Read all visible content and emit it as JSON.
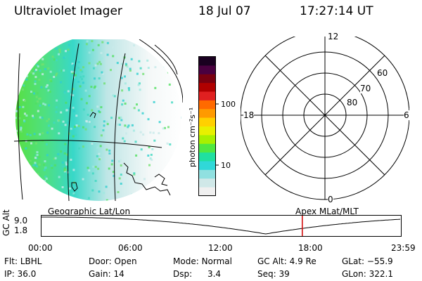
{
  "header": {
    "instrument": "Ultraviolet Imager",
    "date": "18 Jul 07",
    "time": "17:27:14 UT"
  },
  "colorbar": {
    "label": "photon cm⁻²s⁻¹",
    "ticks": [
      "100",
      "10"
    ],
    "colors": [
      "#1a0020",
      "#4a0040",
      "#7a0010",
      "#b00000",
      "#e02020",
      "#ff6a00",
      "#ff9a00",
      "#ffd000",
      "#e8f000",
      "#a8f000",
      "#50e840",
      "#20e0a0",
      "#30d8d8",
      "#90e0e0",
      "#d0e8e8",
      "#f0f0f0"
    ]
  },
  "polar_plot": {
    "labels": [
      "12",
      "18",
      "6",
      "0",
      "80",
      "70",
      "60"
    ]
  },
  "timeline": {
    "left_title": "Geographic Lat/Lon",
    "right_title": "Apex MLat/MLT",
    "y_axis_label": "GC Alt",
    "y_ticks": [
      "9.0",
      "1.8"
    ],
    "x_ticks": [
      "00:00",
      "06:00",
      "12:00",
      "18:00",
      "23:59"
    ],
    "current_time_marker": "17:27",
    "marker_color": "#d00000"
  },
  "info": {
    "flt_label": "Flt:",
    "flt_value": "LBHL",
    "ip_label": "IP:",
    "ip_value": "36.0",
    "door_label": "Door:",
    "door_value": "Open",
    "gain_label": "Gain:",
    "gain_value": "14",
    "mode_label": "Mode:",
    "mode_value": "Normal",
    "dsp_label": "Dsp:",
    "dsp_value": "3.4",
    "gcalt_label": "GC Alt:",
    "gcalt_value": "4.9 Re",
    "seq_label": "Seq:",
    "seq_value": "39",
    "glat_label": "GLat:",
    "glat_value": "−55.9",
    "glon_label": "GLon:",
    "glon_value": "322.1"
  }
}
